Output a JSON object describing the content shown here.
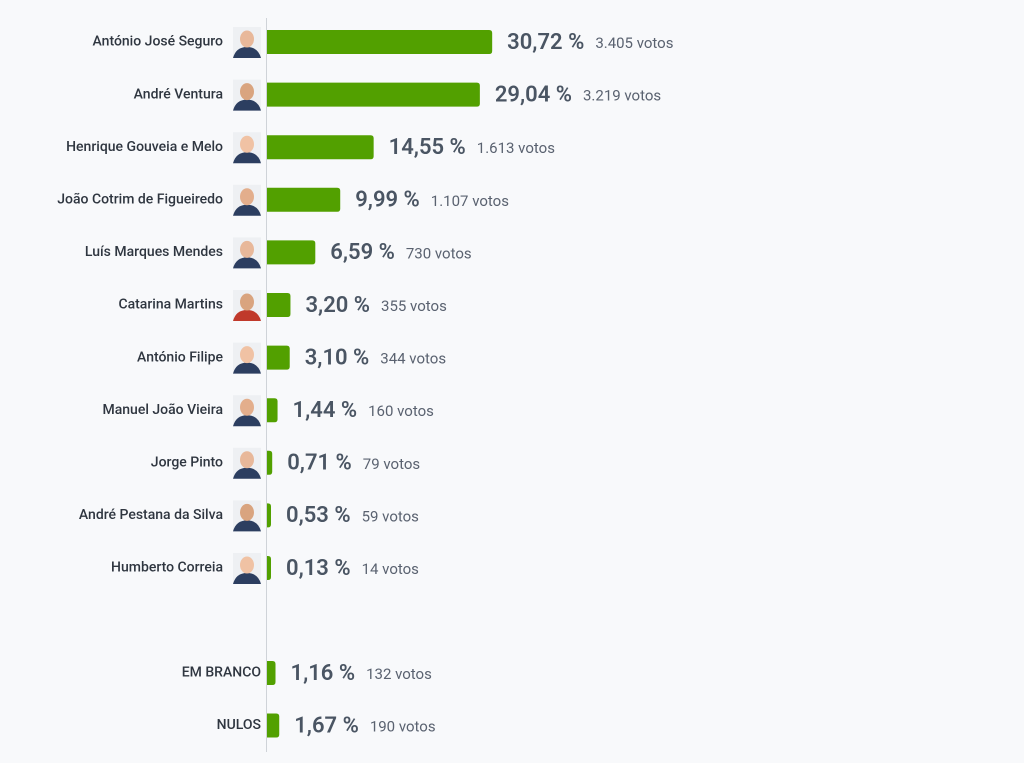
{
  "chart_data": {
    "type": "bar",
    "orientation": "horizontal",
    "color": "#52a000",
    "categories": [
      "António José Seguro",
      "André Ventura",
      "Henrique Gouveia e Melo",
      "João Cotrim de Figueiredo",
      "Luís Marques Mendes",
      "Catarina Martins",
      "António Filipe",
      "Manuel João Vieira",
      "Jorge Pinto",
      "André Pestana da Silva",
      "Humberto Correia",
      "EM BRANCO",
      "NULOS"
    ],
    "values": [
      30.72,
      29.04,
      14.55,
      9.99,
      6.59,
      3.2,
      3.1,
      1.44,
      0.71,
      0.53,
      0.13,
      1.16,
      1.67
    ],
    "value_labels": [
      "30,72 %",
      "29,04 %",
      "14,55 %",
      "9,99 %",
      "6,59 %",
      "3,20 %",
      "3,10 %",
      "1,44 %",
      "0,71 %",
      "0,53 %",
      "0,13 %",
      "1,16 %",
      "1,67 %"
    ],
    "vote_labels": [
      "3.405 votos",
      "3.219 votos",
      "1.613 votos",
      "1.107 votos",
      "730 votos",
      "355 votos",
      "344 votos",
      "160 votos",
      "79 votos",
      "59 votos",
      "14 votos",
      "132 votos",
      "190 votos"
    ]
  }
}
